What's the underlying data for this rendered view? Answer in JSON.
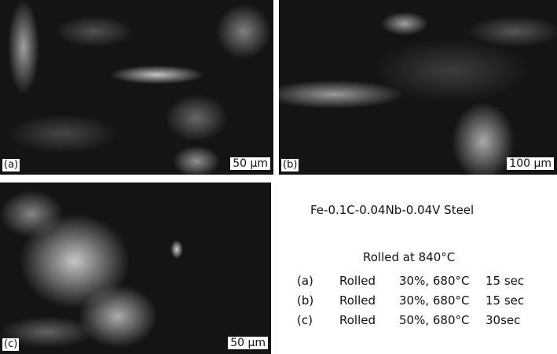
{
  "panels": [
    {
      "label": "(a)",
      "scale_bar": "50 μm"
    },
    {
      "label": "(b)",
      "scale_bar": "100 μm"
    },
    {
      "label": "(c)",
      "scale_bar": "50 μm"
    }
  ],
  "caption": {
    "alloy": "Fe-0.1C-0.04Nb-0.04V Steel",
    "condition": "Rolled at 840°C",
    "rows": [
      {
        "label": "(a)",
        "process": "Rolled",
        "reduction": "30%, 680°C",
        "time": "15 sec"
      },
      {
        "label": "(b)",
        "process": "Rolled",
        "reduction": "30%, 680°C",
        "time": "15 sec"
      },
      {
        "label": "(c)",
        "process": "Rolled",
        "reduction": "50%, 680°C",
        "time": "30sec"
      }
    ]
  }
}
